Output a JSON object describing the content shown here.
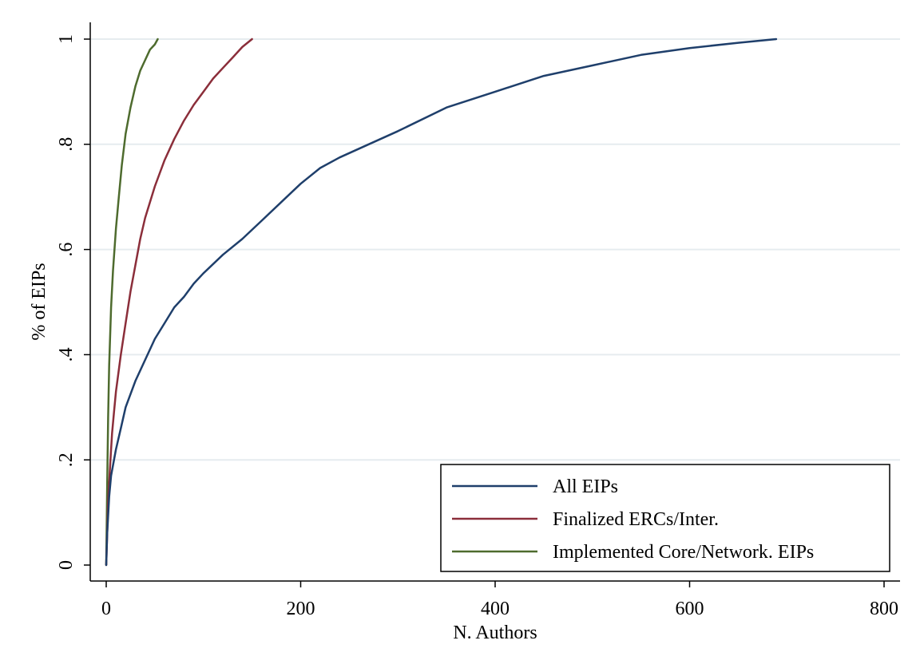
{
  "chart_data": {
    "type": "line",
    "xlabel": "N. Authors",
    "ylabel": "% of EIPs",
    "xlim": [
      0,
      800
    ],
    "ylim": [
      0,
      1
    ],
    "x_ticks": [
      0,
      200,
      400,
      600,
      800
    ],
    "x_tick_labels": [
      "0",
      "200",
      "400",
      "600",
      "800"
    ],
    "y_ticks": [
      0,
      0.2,
      0.4,
      0.6,
      0.8,
      1
    ],
    "y_tick_labels": [
      "0",
      ".2",
      ".4",
      ".6",
      ".8",
      "1"
    ],
    "grid": {
      "horizontal": true,
      "vertical": false
    },
    "legend_position": "bottom-right",
    "series": [
      {
        "name": "All EIPs",
        "color": "#1f3f6b",
        "x": [
          0,
          1,
          3,
          5,
          10,
          15,
          20,
          30,
          40,
          50,
          60,
          70,
          80,
          90,
          100,
          120,
          140,
          160,
          180,
          200,
          220,
          240,
          270,
          300,
          350,
          400,
          450,
          500,
          550,
          600,
          650,
          689
        ],
        "y": [
          0,
          0.06,
          0.13,
          0.17,
          0.22,
          0.26,
          0.3,
          0.35,
          0.39,
          0.43,
          0.46,
          0.49,
          0.51,
          0.535,
          0.555,
          0.59,
          0.62,
          0.655,
          0.69,
          0.725,
          0.755,
          0.775,
          0.8,
          0.825,
          0.87,
          0.9,
          0.93,
          0.95,
          0.97,
          0.983,
          0.993,
          1.0
        ]
      },
      {
        "name": "Finalized ERCs/Inter.",
        "color": "#8b2e3a",
        "x": [
          0,
          1,
          2,
          4,
          6,
          8,
          10,
          15,
          20,
          25,
          30,
          35,
          40,
          50,
          60,
          70,
          80,
          90,
          100,
          110,
          120,
          130,
          140,
          150
        ],
        "y": [
          0,
          0.06,
          0.12,
          0.19,
          0.25,
          0.29,
          0.33,
          0.4,
          0.46,
          0.52,
          0.57,
          0.62,
          0.66,
          0.72,
          0.77,
          0.81,
          0.845,
          0.875,
          0.9,
          0.925,
          0.945,
          0.965,
          0.985,
          1.0
        ]
      },
      {
        "name": "Implemented Core/Network. EIPs",
        "color": "#4e6b2e",
        "x": [
          0,
          1,
          2,
          3,
          5,
          7,
          10,
          13,
          16,
          20,
          25,
          30,
          35,
          40,
          45,
          50,
          53
        ],
        "y": [
          0,
          0.15,
          0.28,
          0.38,
          0.49,
          0.56,
          0.64,
          0.7,
          0.76,
          0.82,
          0.87,
          0.91,
          0.94,
          0.96,
          0.98,
          0.99,
          1.0
        ]
      }
    ]
  }
}
